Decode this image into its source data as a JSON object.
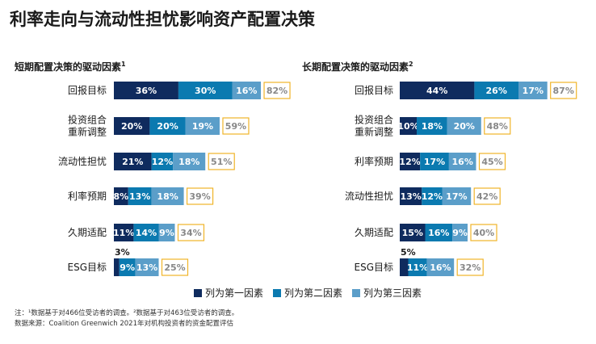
{
  "title": "利率走向与流动性担忧影响资产配置决策",
  "colors": {
    "first": "#0f2b5e",
    "second": "#0b7ab0",
    "third": "#5b9ec9",
    "total_border": "#f0b429",
    "total_text": "#888888"
  },
  "legend": [
    {
      "label": "列为第一因素",
      "color": "#0f2b5e"
    },
    {
      "label": "列为第二因素",
      "color": "#0b7ab0"
    },
    {
      "label": "列为第三因素",
      "color": "#5b9ec9"
    }
  ],
  "notes": {
    "line1": "注：¹数据基于对466位受访者的调查。²数据基于对463位受访者的调查。",
    "line2": "数据来源：Coalition Greenwich 2021年对机构投资者的资金配置评估"
  },
  "chart_data": [
    {
      "type": "bar",
      "stacked": true,
      "orientation": "horizontal",
      "title": "短期配置决策的驱动因素",
      "superscript": "1",
      "categories": [
        "回报目标",
        "投资组合\n重新调整",
        "流动性担忧",
        "利率预期",
        "久期适配",
        "ESG目标"
      ],
      "series": [
        {
          "name": "列为第一因素",
          "values": [
            36,
            20,
            21,
            8,
            11,
            3
          ]
        },
        {
          "name": "列为第二因素",
          "values": [
            30,
            20,
            12,
            13,
            14,
            9
          ]
        },
        {
          "name": "列为第三因素",
          "values": [
            16,
            19,
            18,
            18,
            9,
            13
          ]
        }
      ],
      "totals": [
        82,
        59,
        51,
        39,
        34,
        25
      ]
    },
    {
      "type": "bar",
      "stacked": true,
      "orientation": "horizontal",
      "title": "长期配置决策的驱动因素",
      "superscript": "2",
      "categories": [
        "回报目标",
        "投资组合\n重新调整",
        "利率预期",
        "流动性担忧",
        "久期适配",
        "ESG目标"
      ],
      "series": [
        {
          "name": "列为第一因素",
          "values": [
            44,
            10,
            12,
            13,
            15,
            5
          ]
        },
        {
          "name": "列为第二因素",
          "values": [
            26,
            18,
            17,
            12,
            16,
            11
          ]
        },
        {
          "name": "列为第三因素",
          "values": [
            17,
            20,
            16,
            17,
            9,
            16
          ]
        }
      ],
      "totals": [
        87,
        48,
        45,
        42,
        40,
        32
      ]
    }
  ]
}
